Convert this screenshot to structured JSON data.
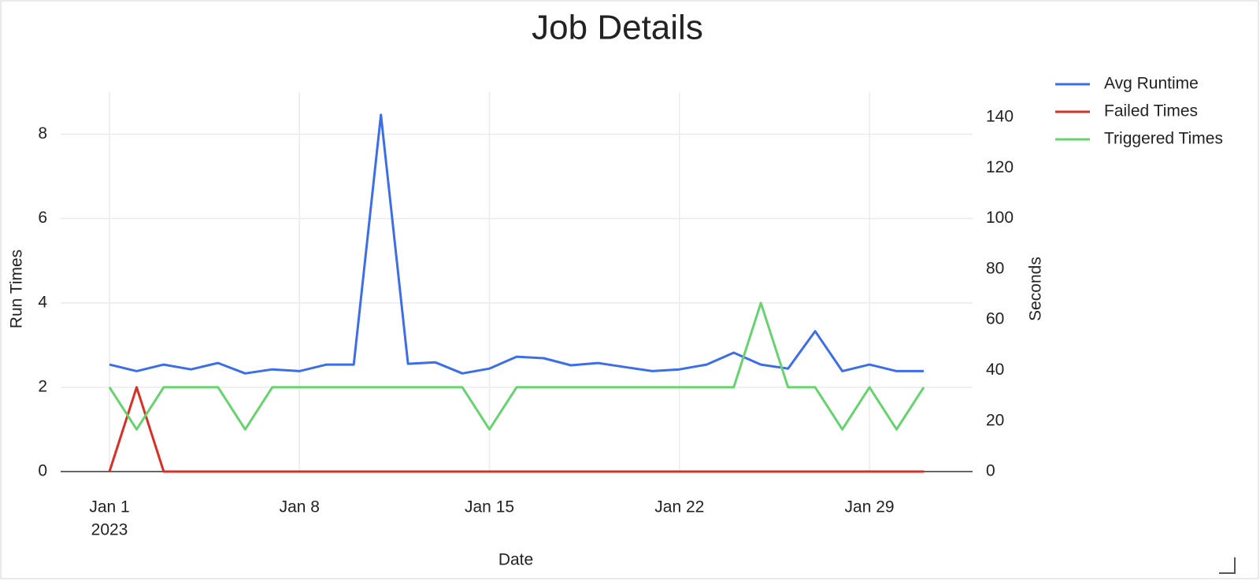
{
  "chart_data": {
    "type": "line",
    "title": "Job Details",
    "xlabel": "Date",
    "ylabel": "Run Times",
    "y2label": "Seconds",
    "x": [
      "2023-01-01",
      "2023-01-02",
      "2023-01-03",
      "2023-01-04",
      "2023-01-05",
      "2023-01-06",
      "2023-01-07",
      "2023-01-08",
      "2023-01-09",
      "2023-01-10",
      "2023-01-11",
      "2023-01-12",
      "2023-01-13",
      "2023-01-14",
      "2023-01-15",
      "2023-01-16",
      "2023-01-17",
      "2023-01-18",
      "2023-01-19",
      "2023-01-20",
      "2023-01-21",
      "2023-01-22",
      "2023-01-23",
      "2023-01-24",
      "2023-01-25",
      "2023-01-26",
      "2023-01-27",
      "2023-01-28",
      "2023-01-29",
      "2023-01-30",
      "2023-01-31"
    ],
    "xticks": [
      {
        "value": "2023-01-01",
        "label": "Jan 1"
      },
      {
        "value": "2023-01-08",
        "label": "Jan 8"
      },
      {
        "value": "2023-01-15",
        "label": "Jan 15"
      },
      {
        "value": "2023-01-22",
        "label": "Jan 22"
      },
      {
        "value": "2023-01-29",
        "label": "Jan 29"
      }
    ],
    "x_year_label": "2023",
    "ylim": [
      0,
      9
    ],
    "yticks": [
      0,
      2,
      4,
      6,
      8
    ],
    "y2lim": [
      0,
      150
    ],
    "y2ticks": [
      0,
      20,
      40,
      60,
      80,
      100,
      120,
      140
    ],
    "grid": true,
    "legend": "top-right",
    "series": [
      {
        "name": "Avg Runtime",
        "color": "#3b6ee8",
        "axis": "y2",
        "values": [
          42.3,
          39.7,
          42.3,
          40.4,
          42.9,
          38.8,
          40.4,
          39.7,
          42.3,
          42.3,
          141,
          42.6,
          43.2,
          38.8,
          40.7,
          45.4,
          44.8,
          42,
          42.9,
          41.3,
          39.7,
          40.4,
          42.3,
          47,
          42.3,
          40.7,
          55.5,
          39.7,
          42.3,
          39.7,
          39.7
        ]
      },
      {
        "name": "Failed Times",
        "color": "#d93025",
        "values": [
          0,
          2,
          0,
          0,
          0,
          0,
          0,
          0,
          0,
          0,
          0,
          0,
          0,
          0,
          0,
          0,
          0,
          0,
          0,
          0,
          0,
          0,
          0,
          0,
          0,
          0,
          0,
          0,
          0,
          0,
          0
        ]
      },
      {
        "name": "Triggered Times",
        "color": "#66d36e",
        "values": [
          2,
          1,
          2,
          2,
          2,
          1,
          2,
          2,
          2,
          2,
          2,
          2,
          2,
          2,
          1,
          2,
          2,
          2,
          2,
          2,
          2,
          2,
          2,
          2,
          4,
          2,
          2,
          1,
          2,
          1,
          2
        ]
      }
    ]
  }
}
